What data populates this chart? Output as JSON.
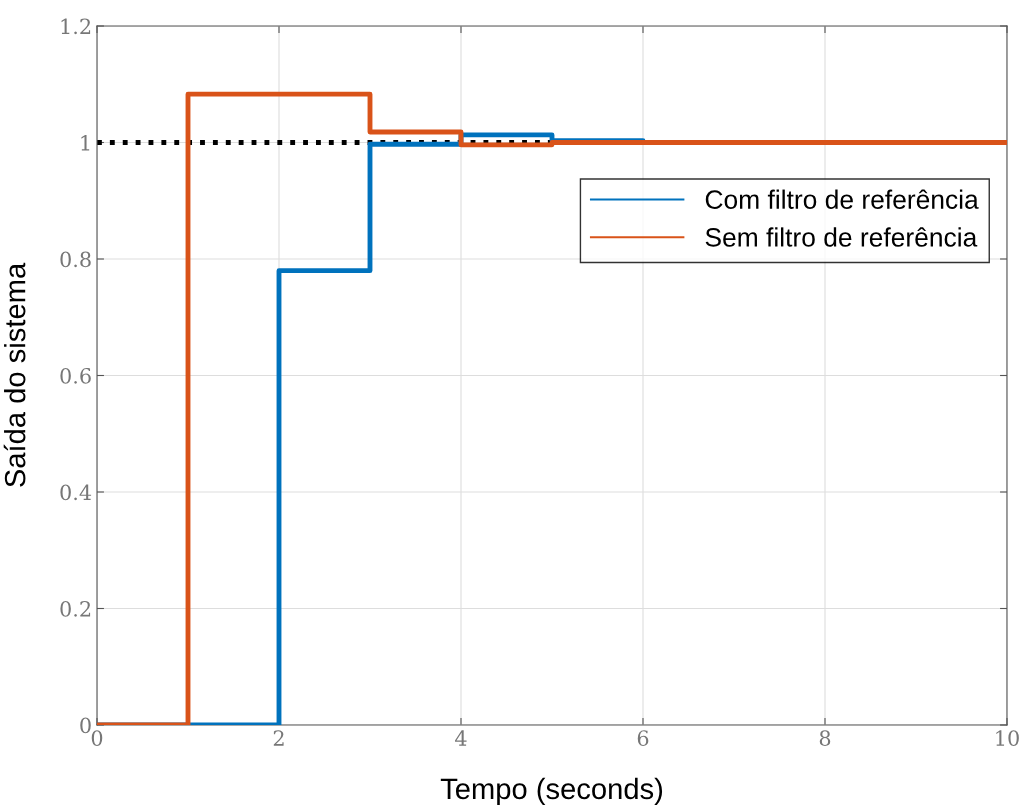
{
  "chart_data": {
    "type": "step",
    "xlabel": "Tempo (seconds)",
    "ylabel": "Saída do sistema",
    "x": [
      0,
      1,
      2,
      3,
      4,
      5,
      6,
      7,
      8,
      9,
      10
    ],
    "series": [
      {
        "name": "Com filtro de referência",
        "color": "#0072bd",
        "values": [
          0,
          0,
          0.78,
          0.997,
          1.013,
          1.003,
          1.0,
          null,
          null,
          null,
          null
        ]
      },
      {
        "name": "Sem filtro de referência",
        "color": "#d95319",
        "values": [
          0,
          1.083,
          1.083,
          1.018,
          0.996,
          1.0,
          1.0,
          1.0,
          1.0,
          1.0,
          1.0
        ]
      }
    ],
    "ref_lines": [
      {
        "axis": "y",
        "value": 1,
        "label": null,
        "color": "#000000",
        "line_style": "dotted"
      }
    ],
    "xlim": [
      0,
      10
    ],
    "xticks": [
      0,
      2,
      4,
      6,
      8,
      10
    ],
    "ylim": [
      0,
      1.2
    ],
    "yticks": [
      0,
      0.2,
      0.4,
      0.6,
      0.8,
      1,
      1.2
    ],
    "grid": true,
    "legend": "top right"
  }
}
